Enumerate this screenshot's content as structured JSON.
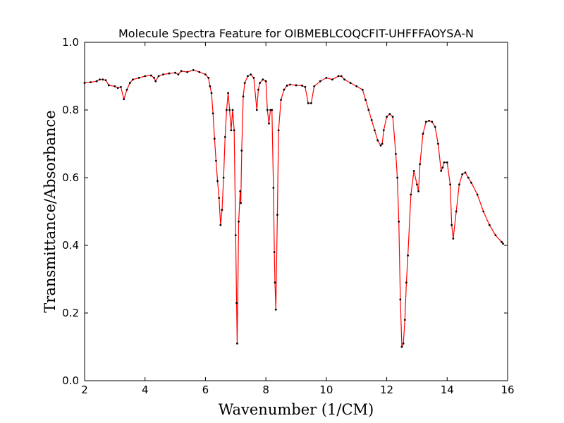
{
  "chart_data": {
    "type": "line",
    "title": "Molecule Spectra Feature for OIBMEBLCOQCFIT-UHFFFAOYSA-N",
    "x_label": "Wavenumber (1/CM)",
    "y_label": "Transmittance/Absorbance",
    "x": [
      2.0,
      2.2,
      2.4,
      2.5,
      2.6,
      2.7,
      2.8,
      3.0,
      3.1,
      3.2,
      3.3,
      3.4,
      3.5,
      3.6,
      3.8,
      4.0,
      4.2,
      4.3,
      4.35,
      4.45,
      4.6,
      4.8,
      5.0,
      5.1,
      5.2,
      5.4,
      5.6,
      5.8,
      6.0,
      6.1,
      6.15,
      6.2,
      6.25,
      6.3,
      6.35,
      6.4,
      6.45,
      6.5,
      6.55,
      6.6,
      6.65,
      6.7,
      6.75,
      6.8,
      6.85,
      6.9,
      6.95,
      7.0,
      7.03,
      7.05,
      7.1,
      7.15,
      7.17,
      7.2,
      7.25,
      7.3,
      7.4,
      7.5,
      7.6,
      7.7,
      7.75,
      7.8,
      7.9,
      8.0,
      8.05,
      8.1,
      8.15,
      8.2,
      8.25,
      8.28,
      8.3,
      8.33,
      8.38,
      8.42,
      8.5,
      8.6,
      8.7,
      8.8,
      9.0,
      9.2,
      9.3,
      9.4,
      9.5,
      9.6,
      9.8,
      10.0,
      10.2,
      10.4,
      10.5,
      10.6,
      10.8,
      11.0,
      11.2,
      11.3,
      11.4,
      11.5,
      11.6,
      11.7,
      11.8,
      11.85,
      11.9,
      12.0,
      12.1,
      12.2,
      12.3,
      12.35,
      12.4,
      12.45,
      12.5,
      12.55,
      12.6,
      12.65,
      12.7,
      12.8,
      12.9,
      13.0,
      13.05,
      13.1,
      13.2,
      13.3,
      13.4,
      13.5,
      13.6,
      13.7,
      13.8,
      13.85,
      13.9,
      14.0,
      14.1,
      14.15,
      14.2,
      14.3,
      14.4,
      14.5,
      14.6,
      14.7,
      14.8,
      15.0,
      15.2,
      15.4,
      15.6,
      15.8,
      15.85
    ],
    "series": [
      {
        "color": "#ff0000",
        "marker_color": "#000000",
        "values": [
          0.88,
          0.882,
          0.885,
          0.89,
          0.89,
          0.888,
          0.873,
          0.87,
          0.865,
          0.868,
          0.832,
          0.86,
          0.88,
          0.89,
          0.895,
          0.9,
          0.902,
          0.895,
          0.885,
          0.9,
          0.905,
          0.908,
          0.91,
          0.905,
          0.915,
          0.912,
          0.918,
          0.912,
          0.905,
          0.895,
          0.87,
          0.85,
          0.79,
          0.715,
          0.65,
          0.59,
          0.54,
          0.46,
          0.505,
          0.6,
          0.72,
          0.8,
          0.85,
          0.8,
          0.74,
          0.8,
          0.74,
          0.43,
          0.23,
          0.11,
          0.47,
          0.56,
          0.525,
          0.68,
          0.84,
          0.88,
          0.9,
          0.905,
          0.895,
          0.8,
          0.86,
          0.88,
          0.89,
          0.885,
          0.8,
          0.76,
          0.8,
          0.8,
          0.57,
          0.38,
          0.29,
          0.21,
          0.49,
          0.74,
          0.83,
          0.86,
          0.872,
          0.875,
          0.873,
          0.872,
          0.868,
          0.82,
          0.82,
          0.87,
          0.885,
          0.895,
          0.89,
          0.9,
          0.9,
          0.89,
          0.88,
          0.87,
          0.86,
          0.83,
          0.8,
          0.77,
          0.74,
          0.71,
          0.695,
          0.7,
          0.74,
          0.78,
          0.788,
          0.78,
          0.67,
          0.6,
          0.47,
          0.24,
          0.1,
          0.11,
          0.18,
          0.29,
          0.37,
          0.55,
          0.62,
          0.58,
          0.56,
          0.64,
          0.73,
          0.765,
          0.768,
          0.765,
          0.75,
          0.7,
          0.62,
          0.63,
          0.645,
          0.645,
          0.58,
          0.46,
          0.42,
          0.5,
          0.58,
          0.61,
          0.615,
          0.6,
          0.585,
          0.55,
          0.5,
          0.46,
          0.43,
          0.41,
          0.405
        ]
      }
    ],
    "xlim": [
      2,
      16
    ],
    "xticks": [
      2,
      4,
      6,
      8,
      10,
      12,
      14,
      16
    ],
    "ylim": [
      0,
      1
    ],
    "yticks": [
      {
        "value": 0,
        "label": "0.0"
      },
      0.2,
      0.4,
      0.6,
      0.8,
      {
        "value": 1,
        "label": "1.0"
      }
    ],
    "axis_label_color": "#8b0000"
  }
}
